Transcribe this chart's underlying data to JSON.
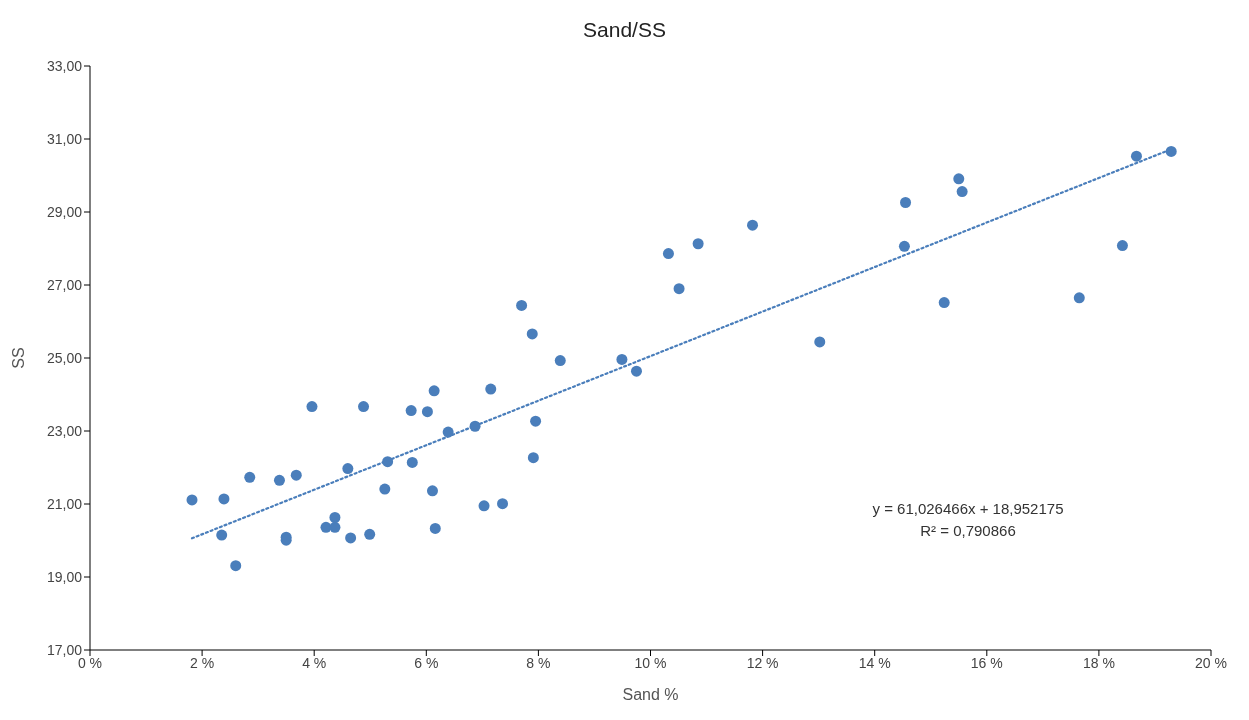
{
  "chart_data": {
    "type": "scatter",
    "title": "Sand/SS",
    "xlabel": "Sand %",
    "ylabel": "SS",
    "x": [
      1.82,
      2.39,
      2.35,
      2.6,
      2.85,
      3.38,
      3.68,
      3.5,
      3.5,
      3.96,
      4.21,
      4.37,
      4.37,
      4.6,
      4.65,
      4.88,
      4.99,
      5.26,
      5.31,
      5.73,
      5.75,
      6.02,
      6.11,
      6.14,
      6.16,
      6.39,
      6.87,
      7.03,
      7.15,
      7.36,
      7.7,
      7.89,
      7.95,
      7.91,
      8.39,
      9.49,
      9.75,
      10.32,
      10.51,
      10.85,
      11.82,
      13.02,
      14.53,
      14.55,
      15.24,
      15.5,
      15.56,
      17.65,
      18.67,
      18.42,
      19.29
    ],
    "series": [
      {
        "color": "#4a7ebb",
        "marker": "circle",
        "values": [
          21.11,
          21.14,
          20.15,
          19.31,
          21.73,
          21.65,
          21.79,
          20.09,
          20.01,
          23.67,
          20.36,
          20.63,
          20.36,
          21.97,
          20.07,
          23.67,
          20.17,
          21.41,
          22.16,
          23.56,
          22.14,
          23.53,
          21.36,
          24.1,
          20.33,
          22.97,
          23.13,
          20.95,
          24.15,
          21.01,
          26.44,
          25.66,
          23.27,
          22.27,
          24.93,
          24.96,
          24.64,
          27.86,
          26.9,
          28.13,
          28.64,
          25.44,
          28.06,
          29.26,
          26.52,
          29.91,
          29.56,
          26.65,
          30.53,
          28.08,
          30.66
        ]
      },
      {
        "type": "line",
        "color": "#4a7ebb",
        "line_style": "dotted",
        "marker": "none",
        "x": [
          1.82,
          19.29
        ],
        "values": [
          20.06,
          30.72
        ]
      }
    ],
    "xlim": [
      0,
      20
    ],
    "xticks": [
      {
        "value": 0,
        "label": "0 %"
      },
      {
        "value": 2,
        "label": "2 %"
      },
      {
        "value": 4,
        "label": "4 %"
      },
      {
        "value": 6,
        "label": "6 %"
      },
      {
        "value": 8,
        "label": "8 %"
      },
      {
        "value": 10,
        "label": "10 %"
      },
      {
        "value": 12,
        "label": "12 %"
      },
      {
        "value": 14,
        "label": "14 %"
      },
      {
        "value": 16,
        "label": "16 %"
      },
      {
        "value": 18,
        "label": "18 %"
      },
      {
        "value": 20,
        "label": "20 %"
      }
    ],
    "ylim": [
      17,
      33
    ],
    "yticks": [
      {
        "value": 17,
        "label": "17,00"
      },
      {
        "value": 19,
        "label": "19,00"
      },
      {
        "value": 21,
        "label": "21,00"
      },
      {
        "value": 23,
        "label": "23,00"
      },
      {
        "value": 25,
        "label": "25,00"
      },
      {
        "value": 27,
        "label": "27,00"
      },
      {
        "value": 29,
        "label": "29,00"
      },
      {
        "value": 31,
        "label": "31,00"
      },
      {
        "value": 33,
        "label": "33,00"
      }
    ],
    "annotations": [
      "y = 61,026466x + 18,952175",
      "R² = 0,790866"
    ]
  }
}
